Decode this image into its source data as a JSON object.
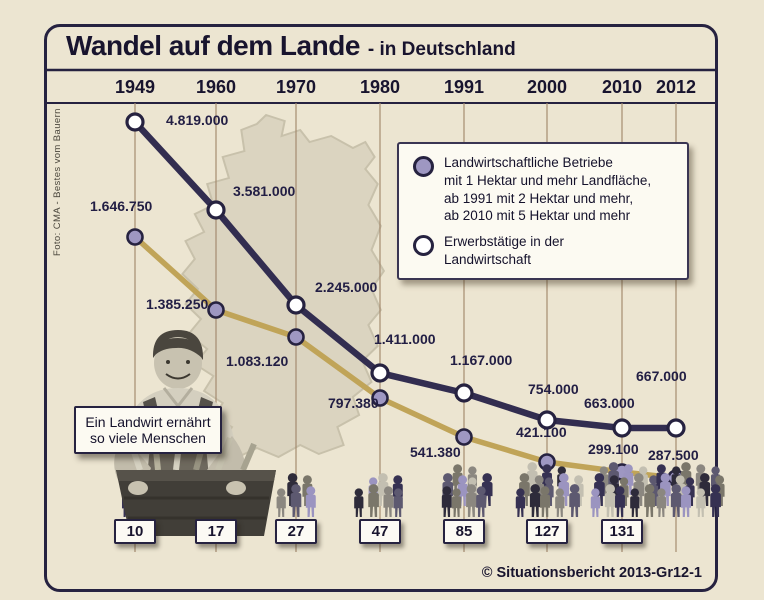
{
  "title": {
    "main": "Wandel auf dem Lande",
    "suffix": "- in Deutschland"
  },
  "photo_credit": "Foto: CMA - Bestes vom Bauern",
  "footer_credit": "© Situationsbericht 2013-Gr12-1",
  "caption_box": "Ein Landwirt ernährt\nso viele Menschen",
  "legend": {
    "farms": {
      "lines": "Landwirtschaftliche Betriebe\nmit 1 Hektar und mehr Landfläche,\nab 1991 mit 2 Hektar und mehr,\nab 2010 mit 5 Hektar und mehr"
    },
    "workers": {
      "lines": "Erwerbstätige in der\nLandwirtschaft"
    }
  },
  "colors": {
    "background": "#ece5d1",
    "frame": "#262240",
    "workers_line": "#322d50",
    "farms_line": "#c0a458",
    "farms_marker": "#9e97c2",
    "workers_marker": "#ffffff",
    "gridline": "#a38a6e",
    "map_fill": "#dbd4c0"
  },
  "chart_data": {
    "type": "line",
    "title": "Wandel auf dem Lande - in Deutschland",
    "categories": [
      "1949",
      "1960",
      "1970",
      "1980",
      "1991",
      "2000",
      "2010",
      "2012"
    ],
    "series": [
      {
        "name": "Erwerbstätige in der Landwirtschaft",
        "values": [
          4819000,
          3581000,
          2245000,
          1411000,
          1167000,
          754000,
          663000,
          667000
        ],
        "labels": [
          "4.819.000",
          "3.581.000",
          "2.245.000",
          "1.411.000",
          "1.167.000",
          "754.000",
          "663.000",
          "667.000"
        ]
      },
      {
        "name": "Landwirtschaftliche Betriebe mit 1 Hektar und mehr Landfläche, ab 1991 mit 2 Hektar und mehr, ab 2010 mit 5 Hektar und mehr",
        "values": [
          1646750,
          1385250,
          1083120,
          797380,
          541380,
          421100,
          299100,
          287500
        ],
        "labels": [
          "1.646.750",
          "1.385.250",
          "1.083.120",
          "797.380",
          "541.380",
          "421.100",
          "299.100",
          "287.500"
        ]
      }
    ],
    "people_per_farmer": {
      "caption": "Ein Landwirt ernährt so viele Menschen",
      "categories": [
        "1949",
        "1960",
        "1970",
        "1980",
        "1991",
        "2000",
        "2010"
      ],
      "values": [
        10,
        17,
        27,
        47,
        85,
        127,
        131
      ]
    },
    "legend_position": "top-right",
    "grid": "vertical-only"
  }
}
